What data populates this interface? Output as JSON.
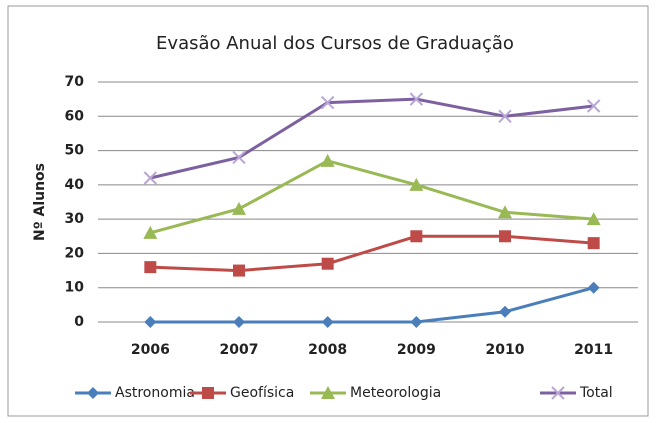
{
  "chart_data": {
    "type": "line",
    "title": "Evasão Anual dos Cursos de Graduação",
    "y_label": "Nº Alunos",
    "categories": [
      "2006",
      "2007",
      "2008",
      "2009",
      "2010",
      "2011"
    ],
    "series": [
      {
        "name": "Astronomia",
        "color": "#4a7ebb",
        "marker": "diamond",
        "values": [
          0,
          0,
          0,
          0,
          3,
          10
        ]
      },
      {
        "name": "Geofísica",
        "color": "#be4b48",
        "marker": "square",
        "values": [
          16,
          15,
          17,
          25,
          25,
          23
        ]
      },
      {
        "name": "Meteorologia",
        "color": "#98b954",
        "marker": "triangle",
        "values": [
          26,
          33,
          47,
          40,
          32,
          30
        ]
      },
      {
        "name": "Total",
        "color": "#7d60a0",
        "marker": "x",
        "values": [
          42,
          48,
          64,
          65,
          60,
          63
        ]
      }
    ],
    "ylim": [
      0,
      70
    ],
    "yticks": [
      0,
      10,
      20,
      30,
      40,
      50,
      60,
      70
    ],
    "grid": true,
    "legend": "bottom"
  }
}
